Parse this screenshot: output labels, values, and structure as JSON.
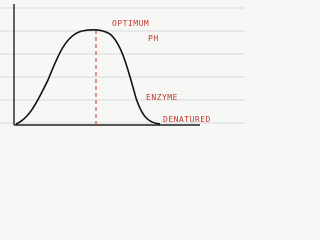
{
  "labels": {
    "optimum": "OPTIMUM",
    "ph": "PH",
    "enzyme": "ENZYME",
    "denatured": "DENATURED"
  }
}
